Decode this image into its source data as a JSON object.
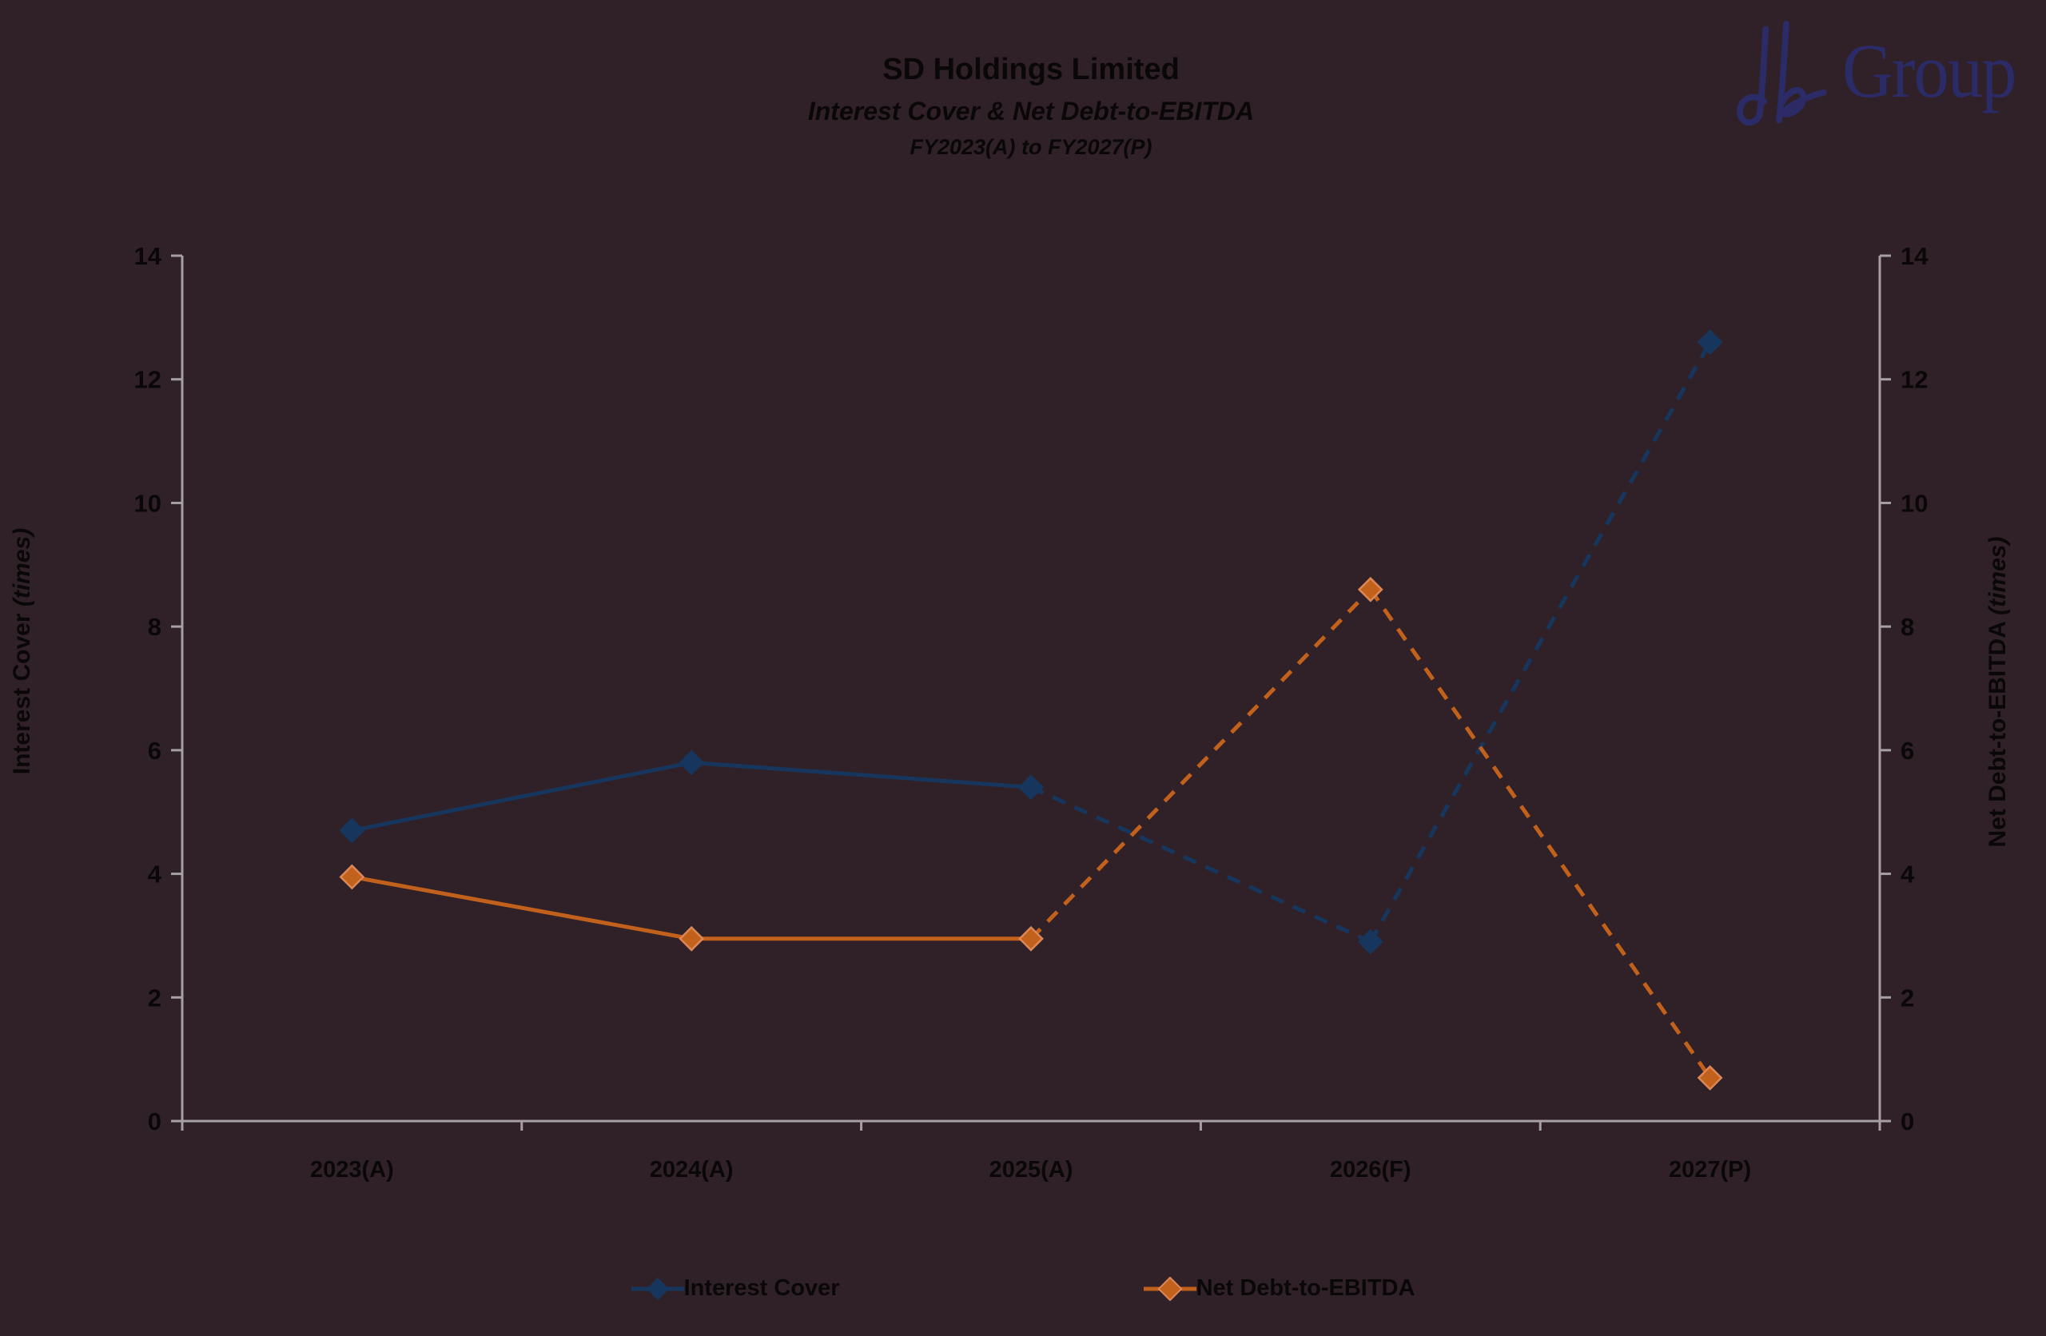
{
  "header": {
    "title": "SD Holdings Limited",
    "subtitle": "Interest Cover & Net Debt-to-EBITDA",
    "period": "FY2023(A) to FY2027(P)",
    "logo_text": "Group",
    "logo_color": "#2b2b68"
  },
  "colors": {
    "background": "#2f2127",
    "text": "#0a0708",
    "axis": "#a6a0a4",
    "interest_cover": "#17365d",
    "net_debt": "#c2611b",
    "net_debt_marker_edge": "#dd8757"
  },
  "chart_data": {
    "type": "line",
    "title": "SD Holdings Limited",
    "subtitle": "Interest Cover & Net Debt-to-EBITDA",
    "period": "FY2023(A) to FY2027(P)",
    "categories": [
      "2023(A)",
      "2024(A)",
      "2025(A)",
      "2026(F)",
      "2027(P)"
    ],
    "series": [
      {
        "name": "Interest Cover",
        "values": [
          4.7,
          5.8,
          5.4,
          2.9,
          12.6
        ],
        "color": "#17365d",
        "marker_edge": "#17365d",
        "axis": "left",
        "marker": "diamond",
        "solid_until_index": 2
      },
      {
        "name": "Net Debt-to-EBITDA",
        "values": [
          3.95,
          2.95,
          2.95,
          8.6,
          0.7
        ],
        "color": "#c2611b",
        "marker_edge": "#dd8757",
        "axis": "right",
        "marker": "diamond",
        "solid_until_index": 2
      }
    ],
    "left_axis": {
      "label": "Interest Cover",
      "unit": "(times)",
      "min": 0,
      "max": 14,
      "step": 2
    },
    "right_axis": {
      "label": "Net Debt-to-EBITDA",
      "unit": "(times)",
      "min": 0,
      "max": 14,
      "step": 2
    },
    "grid": false,
    "legend_position": "bottom",
    "line_style_note": "solid for actuals 2023-2025, dashed for forecast 2025-2027"
  },
  "legend": {
    "items": [
      {
        "label": "Interest Cover",
        "color": "#17365d"
      },
      {
        "label": "Net Debt-to-EBITDA",
        "color": "#c2611b"
      }
    ]
  }
}
